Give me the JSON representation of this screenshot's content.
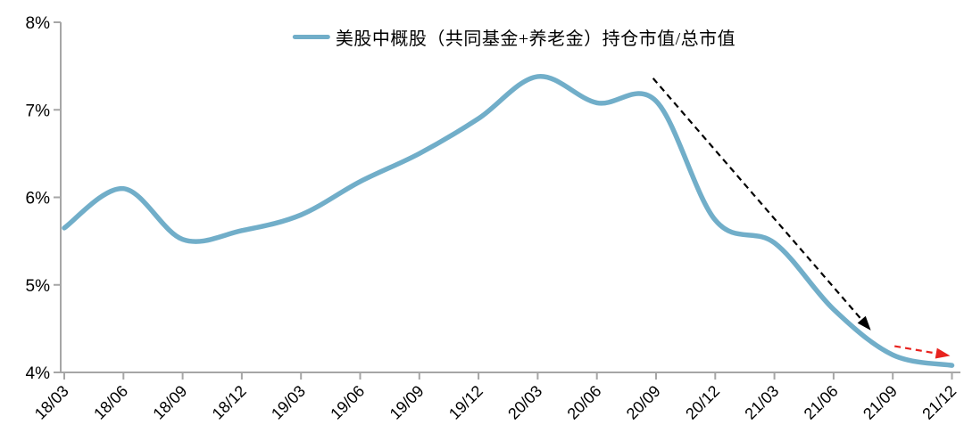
{
  "chart_data": {
    "type": "line",
    "title": "",
    "legend_position": "top-center",
    "smooth": true,
    "grid": false,
    "categories": [
      "18/03",
      "18/06",
      "18/09",
      "18/12",
      "19/03",
      "19/06",
      "19/09",
      "19/12",
      "20/03",
      "20/06",
      "20/09",
      "20/12",
      "21/03",
      "21/06",
      "21/09",
      "21/12"
    ],
    "series": [
      {
        "name": "美股中概股（共同基金+养老金）持仓市值/总市值",
        "color": "#71AEC9",
        "values": [
          5.65,
          6.1,
          5.52,
          5.62,
          5.8,
          6.18,
          6.5,
          6.9,
          7.38,
          7.08,
          7.1,
          5.74,
          5.48,
          4.72,
          4.2,
          4.08
        ]
      }
    ],
    "ylim": [
      4,
      8
    ],
    "ytick_labels": [
      "4%",
      "5%",
      "6%",
      "7%",
      "8%"
    ],
    "yticks": [
      4,
      5,
      6,
      7,
      8
    ],
    "axis_color": "#A6A6A6",
    "text_color": "#000000",
    "annotations": [
      {
        "name": "decline-trend-arrow",
        "style": "dashed-arrow",
        "color": "#000000",
        "from": {
          "x": 9.95,
          "y": 7.36
        },
        "to": {
          "x": 13.63,
          "y": 4.48
        }
      },
      {
        "name": "continuation-trend-arrow",
        "style": "dashed-arrow",
        "color": "#E8231F",
        "from": {
          "x": 14.03,
          "y": 4.3
        },
        "to": {
          "x": 14.97,
          "y": 4.19
        }
      }
    ]
  }
}
